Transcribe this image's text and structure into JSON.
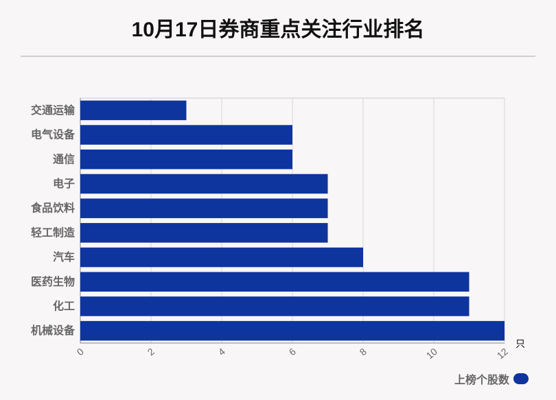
{
  "chart_data": {
    "type": "bar",
    "orientation": "horizontal",
    "title": "10月17日券商重点关注行业排名",
    "categories": [
      "交通运输",
      "电气设备",
      "通信",
      "电子",
      "食品饮料",
      "轻工制造",
      "汽车",
      "医药生物",
      "化工",
      "机械设备"
    ],
    "series": [
      {
        "name": "上榜个股数",
        "values": [
          3,
          6,
          6,
          7,
          7,
          7,
          8,
          11,
          11,
          12
        ]
      }
    ],
    "x_ticks": [
      "0",
      "2",
      "4",
      "6",
      "8",
      "10",
      "12"
    ],
    "xlim": [
      0,
      12
    ],
    "x_unit": "只",
    "grid": true,
    "legend_position": "bottom-right",
    "bar_color": "#0e349e"
  }
}
